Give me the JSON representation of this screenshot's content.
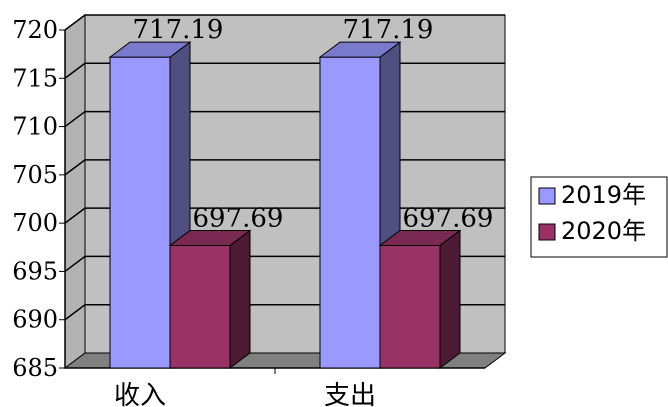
{
  "chart_data": {
    "type": "bar",
    "style": "3d-clustered",
    "categories": [
      "收入",
      "支出"
    ],
    "series": [
      {
        "name": "2019年",
        "values": [
          717.19,
          717.19
        ],
        "color": "#9999ff",
        "side_color": "#4f4f80",
        "top_color": "#7a7acc"
      },
      {
        "name": "2020年",
        "values": [
          697.69,
          697.69
        ],
        "color": "#993366",
        "side_color": "#4d1a33",
        "top_color": "#7a2952"
      }
    ],
    "data_labels": [
      [
        "717.19",
        "717.19"
      ],
      [
        "697.69",
        "697.69"
      ]
    ],
    "y_ticks": [
      "685",
      "690",
      "695",
      "700",
      "705",
      "710",
      "715",
      "720"
    ],
    "ylim": [
      685,
      720
    ],
    "grid": true,
    "wall_color": "#c0c0c0",
    "floor_color": "#808080",
    "legend_position": "right"
  }
}
